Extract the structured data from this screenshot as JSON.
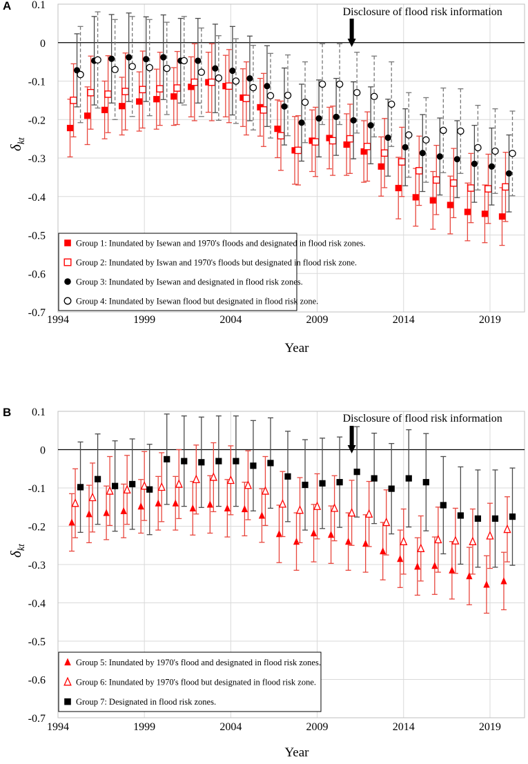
{
  "chart_data": [
    {
      "type": "scatter",
      "panel": "A",
      "xlabel": "Year",
      "ylabel": "δ",
      "ylabel_sub": "kt",
      "xlim": [
        1994,
        2021
      ],
      "ylim": [
        -0.7,
        0.1
      ],
      "xticks": [
        1994,
        1999,
        2004,
        2009,
        2014,
        2019
      ],
      "yticks": [
        0.1,
        0,
        -0.1,
        -0.2,
        -0.3,
        -0.4,
        -0.5,
        -0.6,
        -0.7
      ],
      "ytick_labels": [
        "0.1",
        "0",
        "-0.1",
        "-0.2",
        "-0.3",
        "-0.4",
        "-0.5",
        "-0.6",
        "-0.7"
      ],
      "grid": true,
      "annotation": {
        "text": "Disclosure of flood risk information",
        "x": 2011
      },
      "legend_position": "bottom-left",
      "series": [
        {
          "name": "Group 1: Inundated by Isewan and 1970's floods and designated in flood risk zones.",
          "marker": "square-filled",
          "color": "#ff0000",
          "error_style": "solid",
          "error_color": "#e8453c",
          "offset": -0.3,
          "values": [
            -0.222,
            -0.19,
            -0.175,
            -0.165,
            -0.153,
            -0.147,
            -0.14,
            -0.115,
            -0.103,
            -0.113,
            -0.143,
            -0.168,
            -0.224,
            -0.28,
            -0.255,
            -0.248,
            -0.265,
            -0.283,
            -0.322,
            -0.378,
            -0.402,
            -0.41,
            -0.422,
            -0.44,
            -0.445,
            -0.452
          ],
          "err": [
            0.075,
            0.075,
            0.075,
            0.075,
            0.077,
            0.078,
            0.075,
            0.078,
            0.078,
            0.08,
            0.075,
            0.075,
            0.075,
            0.088,
            0.08,
            0.08,
            0.08,
            0.08,
            0.077,
            0.08,
            0.075,
            0.075,
            0.075,
            0.075,
            0.075,
            0.075
          ]
        },
        {
          "name": "Group 2: Inundated by Iswan and 1970's floods but designated in flood risk zone.",
          "marker": "square-open",
          "color": "#ff0000",
          "error_style": "solid",
          "error_color": "#e8453c",
          "offset": -0.1,
          "values": [
            -0.15,
            -0.13,
            -0.134,
            -0.127,
            -0.122,
            -0.12,
            -0.118,
            -0.103,
            -0.103,
            -0.113,
            -0.145,
            -0.175,
            -0.242,
            -0.28,
            -0.258,
            -0.255,
            -0.25,
            -0.27,
            -0.287,
            -0.31,
            -0.333,
            -0.357,
            -0.365,
            -0.378,
            -0.38,
            -0.375
          ],
          "err": [
            0.095,
            0.095,
            0.1,
            0.1,
            0.1,
            0.095,
            0.095,
            0.1,
            0.1,
            0.095,
            0.095,
            0.095,
            0.09,
            0.09,
            0.09,
            0.09,
            0.09,
            0.09,
            0.09,
            0.09,
            0.09,
            0.09,
            0.09,
            0.09,
            0.09,
            0.09
          ]
        },
        {
          "name": "Group 3: Inundated by Isewan and designated in flood risk zones.",
          "marker": "circle-filled",
          "color": "#000000",
          "error_style": "solid",
          "error_color": "#4a4a4a",
          "offset": 0.1,
          "values": [
            -0.072,
            -0.047,
            -0.042,
            -0.038,
            -0.043,
            -0.038,
            -0.047,
            -0.047,
            -0.067,
            -0.073,
            -0.093,
            -0.113,
            -0.166,
            -0.208,
            -0.197,
            -0.193,
            -0.202,
            -0.215,
            -0.247,
            -0.272,
            -0.287,
            -0.296,
            -0.303,
            -0.315,
            -0.322,
            -0.34
          ],
          "err": [
            0.095,
            0.115,
            0.115,
            0.115,
            0.11,
            0.11,
            0.11,
            0.11,
            0.115,
            0.115,
            0.11,
            0.105,
            0.1,
            0.1,
            0.1,
            0.1,
            0.1,
            0.1,
            0.1,
            0.1,
            0.1,
            0.1,
            0.1,
            0.1,
            0.1,
            0.1
          ]
        },
        {
          "name": "Group 4: Inundated by Isewan flood but designated in flood risk zone.",
          "marker": "circle-open",
          "color": "#000000",
          "error_style": "dashed",
          "error_color": "#777777",
          "offset": 0.3,
          "values": [
            -0.083,
            -0.045,
            -0.07,
            -0.062,
            -0.065,
            -0.067,
            -0.047,
            -0.077,
            -0.092,
            -0.1,
            -0.117,
            -0.138,
            -0.137,
            -0.155,
            -0.108,
            -0.108,
            -0.13,
            -0.14,
            -0.16,
            -0.24,
            -0.253,
            -0.228,
            -0.23,
            -0.273,
            -0.282,
            -0.288
          ],
          "err": [
            0.125,
            0.125,
            0.13,
            0.13,
            0.125,
            0.12,
            0.115,
            0.115,
            0.11,
            0.11,
            0.11,
            0.11,
            0.105,
            0.105,
            0.105,
            0.105,
            0.105,
            0.105,
            0.11,
            0.11,
            0.11,
            0.11,
            0.11,
            0.11,
            0.11,
            0.11
          ]
        }
      ],
      "x": [
        1995,
        1996,
        1997,
        1998,
        1999,
        2000,
        2001,
        2002,
        2003,
        2004,
        2005,
        2006,
        2007,
        2008,
        2009,
        2010,
        2011,
        2012,
        2013,
        2014,
        2015,
        2016,
        2017,
        2018,
        2019,
        2020
      ]
    },
    {
      "type": "scatter",
      "panel": "B",
      "xlabel": "Year",
      "ylabel": "δ",
      "ylabel_sub": "kt",
      "xlim": [
        1994,
        2021
      ],
      "ylim": [
        -0.7,
        0.1
      ],
      "xticks": [
        1994,
        1999,
        2004,
        2009,
        2014,
        2019
      ],
      "yticks": [
        0.1,
        0,
        -0.1,
        -0.2,
        -0.3,
        -0.4,
        -0.5,
        -0.6,
        -0.7
      ],
      "ytick_labels": [
        "0.1",
        "0",
        "-0.1",
        "-0.2",
        "-0.3",
        "-0.4",
        "-0.5",
        "-0.6",
        "-0.7"
      ],
      "grid": true,
      "annotation": {
        "text": "Disclosure of flood risk information",
        "x": 2011
      },
      "legend_position": "bottom-left",
      "series": [
        {
          "name": "Group 5: Inundated by 1970's flood and designated in flood risk zones.",
          "marker": "triangle-filled",
          "color": "#ff0000",
          "error_style": "solid",
          "error_color": "#e8453c",
          "offset": -0.2,
          "values": [
            -0.19,
            -0.168,
            -0.165,
            -0.16,
            -0.148,
            -0.14,
            -0.14,
            -0.153,
            -0.143,
            -0.153,
            -0.155,
            -0.172,
            -0.22,
            -0.24,
            -0.218,
            -0.222,
            -0.24,
            -0.245,
            -0.265,
            -0.285,
            -0.305,
            -0.303,
            -0.315,
            -0.33,
            -0.352,
            -0.343
          ],
          "err": [
            0.075,
            0.075,
            0.07,
            0.07,
            0.07,
            0.07,
            0.07,
            0.07,
            0.075,
            0.075,
            0.07,
            0.07,
            0.075,
            0.075,
            0.075,
            0.075,
            0.075,
            0.075,
            0.075,
            0.075,
            0.075,
            0.075,
            0.075,
            0.075,
            0.075,
            0.075
          ]
        },
        {
          "name": "Group 6: Inundated by 1970's flood but designated in flood risk zone.",
          "marker": "triangle-open",
          "color": "#ff0000",
          "error_style": "solid",
          "error_color": "#e8453c",
          "offset": 0.0,
          "values": [
            -0.14,
            -0.125,
            -0.108,
            -0.105,
            -0.095,
            -0.098,
            -0.09,
            -0.078,
            -0.072,
            -0.08,
            -0.093,
            -0.108,
            -0.142,
            -0.158,
            -0.148,
            -0.153,
            -0.165,
            -0.168,
            -0.19,
            -0.24,
            -0.258,
            -0.235,
            -0.238,
            -0.24,
            -0.225,
            -0.208
          ],
          "err": [
            0.09,
            0.09,
            0.09,
            0.09,
            0.09,
            0.09,
            0.09,
            0.09,
            0.09,
            0.09,
            0.09,
            0.09,
            0.085,
            0.085,
            0.085,
            0.085,
            0.085,
            0.085,
            0.085,
            0.085,
            0.085,
            0.085,
            0.085,
            0.085,
            0.085,
            0.085
          ]
        },
        {
          "name": "Group 7: Designated in flood risk zones.",
          "marker": "square-filled",
          "color": "#000000",
          "error_style": "solid",
          "error_color": "#4a4a4a",
          "offset": 0.3,
          "values": [
            -0.098,
            -0.077,
            -0.095,
            -0.09,
            -0.104,
            -0.025,
            -0.03,
            -0.033,
            -0.03,
            -0.03,
            -0.042,
            -0.035,
            -0.07,
            -0.092,
            -0.088,
            -0.085,
            -0.058,
            -0.075,
            -0.102,
            -0.075,
            -0.085,
            -0.145,
            -0.172,
            -0.18,
            -0.18,
            -0.175
          ],
          "err": [
            0.118,
            0.118,
            0.118,
            0.118,
            0.118,
            0.118,
            0.118,
            0.118,
            0.118,
            0.118,
            0.118,
            0.118,
            0.118,
            0.118,
            0.118,
            0.118,
            0.118,
            0.118,
            0.118,
            0.127,
            0.127,
            0.127,
            0.127,
            0.127,
            0.127,
            0.127
          ]
        }
      ],
      "x": [
        1995,
        1996,
        1997,
        1998,
        1999,
        2000,
        2001,
        2002,
        2003,
        2004,
        2005,
        2006,
        2007,
        2008,
        2009,
        2010,
        2011,
        2012,
        2013,
        2014,
        2015,
        2016,
        2017,
        2018,
        2019,
        2020
      ]
    }
  ]
}
